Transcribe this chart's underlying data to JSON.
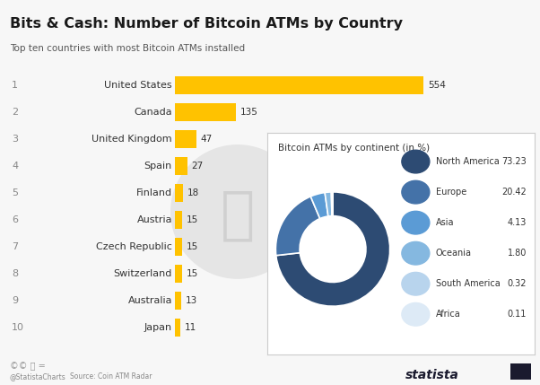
{
  "title": "Bits & Cash: Number of Bitcoin ATMs by Country",
  "subtitle": "Top ten countries with most Bitcoin ATMs installed",
  "background_color": "#f7f7f7",
  "bar_color": "#FFC200",
  "countries": [
    "United States",
    "Canada",
    "United Kingdom",
    "Spain",
    "Finland",
    "Austria",
    "Czech Republic",
    "Switzerland",
    "Australia",
    "Japan"
  ],
  "ranks": [
    1,
    2,
    3,
    4,
    5,
    6,
    7,
    8,
    9,
    10
  ],
  "values": [
    554,
    135,
    47,
    27,
    18,
    15,
    15,
    15,
    13,
    11
  ],
  "max_value": 600,
  "pie_title": "Bitcoin ATMs by continent (in %)",
  "pie_labels": [
    "North America",
    "Europe",
    "Asia",
    "Oceania",
    "South America",
    "Africa"
  ],
  "pie_values": [
    73.23,
    20.42,
    4.13,
    1.8,
    0.32,
    0.11
  ],
  "pie_colors": [
    "#2d4b73",
    "#4472a8",
    "#5b9bd5",
    "#85b8e0",
    "#b8d4ed",
    "#ddeaf6"
  ],
  "source_text": "Source: Coin ATM Radar",
  "footer_text": "@StatistaCharts",
  "statista_text": "statista"
}
